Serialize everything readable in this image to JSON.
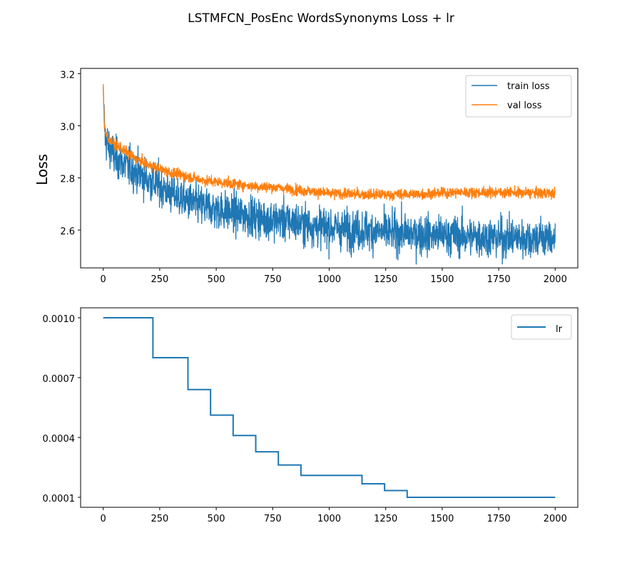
{
  "figure": {
    "title": "LSTMFCN_PosEnc WordsSynonyms Loss + lr"
  },
  "chart_data": [
    {
      "type": "line",
      "ylabel": "Loss",
      "xlim": [
        -100,
        2100
      ],
      "ylim": [
        2.455,
        3.22
      ],
      "x_ticks": [
        0,
        250,
        500,
        750,
        1000,
        1250,
        1500,
        1750,
        2000
      ],
      "y_ticks": [
        2.6,
        2.8,
        3.0,
        3.2
      ],
      "x_tick_labels": [
        "0",
        "250",
        "500",
        "750",
        "1000",
        "1250",
        "1500",
        "1750",
        "2000"
      ],
      "y_tick_labels": [
        "2.6",
        "2.8",
        "3.0",
        "3.2"
      ],
      "legend_position": "top-right",
      "series": [
        {
          "name": "train loss",
          "color": "#1f77b4",
          "x": [
            0,
            5,
            10,
            25,
            50,
            100,
            150,
            200,
            250,
            300,
            350,
            400,
            450,
            500,
            550,
            600,
            650,
            700,
            750,
            800,
            850,
            900,
            950,
            1000,
            1050,
            1100,
            1150,
            1200,
            1250,
            1300,
            1350,
            1400,
            1450,
            1500,
            1550,
            1600,
            1650,
            1700,
            1750,
            1800,
            1850,
            1900,
            1950,
            2000
          ],
          "values": [
            3.15,
            3.0,
            2.95,
            2.92,
            2.88,
            2.85,
            2.82,
            2.79,
            2.77,
            2.74,
            2.72,
            2.7,
            2.69,
            2.68,
            2.67,
            2.66,
            2.655,
            2.645,
            2.64,
            2.635,
            2.63,
            2.62,
            2.615,
            2.61,
            2.605,
            2.6,
            2.6,
            2.595,
            2.59,
            2.59,
            2.585,
            2.585,
            2.58,
            2.58,
            2.58,
            2.575,
            2.575,
            2.575,
            2.57,
            2.57,
            2.57,
            2.57,
            2.57,
            2.57
          ],
          "noise": 0.045
        },
        {
          "name": "val loss",
          "color": "#ff7f0e",
          "x": [
            0,
            5,
            10,
            25,
            50,
            100,
            150,
            200,
            250,
            300,
            350,
            400,
            450,
            500,
            550,
            600,
            650,
            700,
            750,
            800,
            850,
            900,
            950,
            1000,
            1050,
            1100,
            1150,
            1200,
            1250,
            1300,
            1350,
            1400,
            1450,
            1500,
            1550,
            1600,
            1650,
            1700,
            1750,
            1800,
            1850,
            1900,
            1950,
            2000
          ],
          "values": [
            3.16,
            2.99,
            2.97,
            2.95,
            2.93,
            2.9,
            2.87,
            2.85,
            2.835,
            2.82,
            2.81,
            2.8,
            2.79,
            2.785,
            2.78,
            2.775,
            2.77,
            2.765,
            2.765,
            2.76,
            2.755,
            2.75,
            2.745,
            2.74,
            2.74,
            2.738,
            2.737,
            2.736,
            2.736,
            2.737,
            2.738,
            2.738,
            2.74,
            2.742,
            2.745,
            2.745,
            2.745,
            2.745,
            2.745,
            2.745,
            2.742,
            2.742,
            2.742,
            2.74
          ],
          "noise": 0.01
        }
      ]
    },
    {
      "type": "line",
      "xlim": [
        -100,
        2100
      ],
      "ylim": [
        5e-05,
        0.00105
      ],
      "x_ticks": [
        0,
        250,
        500,
        750,
        1000,
        1250,
        1500,
        1750,
        2000
      ],
      "y_ticks": [
        0.0001,
        0.0004,
        0.0007,
        0.001
      ],
      "x_tick_labels": [
        "0",
        "250",
        "500",
        "750",
        "1000",
        "1250",
        "1500",
        "1750",
        "2000"
      ],
      "y_tick_labels": [
        "0.0001",
        "0.0004",
        "0.0007",
        "0.0010"
      ],
      "legend_position": "top-right",
      "series": [
        {
          "name": "lr",
          "color": "#1f77b4",
          "drawstyle": "steps-post",
          "x": [
            0,
            220,
            375,
            475,
            575,
            675,
            775,
            875,
            1145,
            1245,
            1345,
            2000
          ],
          "values": [
            0.001,
            0.0008,
            0.00064,
            0.000512,
            0.00041,
            0.000328,
            0.000262,
            0.00021,
            0.000168,
            0.000134,
            0.0001,
            0.0001
          ]
        }
      ]
    }
  ]
}
